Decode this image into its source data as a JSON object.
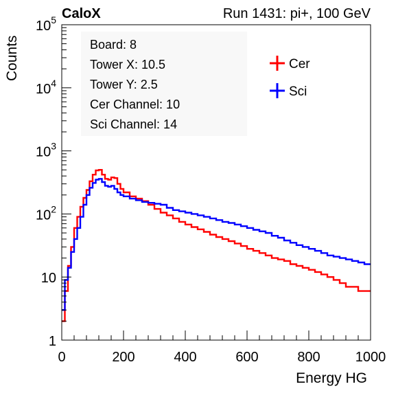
{
  "chart_data": {
    "type": "line",
    "title_left": "CaloX",
    "title_right": "Run 1431: pi+, 100 GeV",
    "xlabel": "Energy HG",
    "ylabel": "Counts",
    "xlim": [
      0,
      1000
    ],
    "ylim": [
      1,
      100000
    ],
    "y_scale": "log",
    "grid": false,
    "legend_position": "top-right",
    "x_ticks": [
      {
        "value": 0,
        "label": "0"
      },
      {
        "value": 200,
        "label": "200"
      },
      {
        "value": 400,
        "label": "400"
      },
      {
        "value": 600,
        "label": "600"
      },
      {
        "value": 800,
        "label": "800"
      },
      {
        "value": 1000,
        "label": "1000"
      }
    ],
    "y_ticks": [
      {
        "value": 1,
        "base": "1",
        "exp": ""
      },
      {
        "value": 10,
        "base": "10",
        "exp": ""
      },
      {
        "value": 100,
        "base": "10",
        "exp": "2"
      },
      {
        "value": 1000,
        "base": "10",
        "exp": "3"
      },
      {
        "value": 10000,
        "base": "10",
        "exp": "4"
      },
      {
        "value": 100000,
        "base": "10",
        "exp": "5"
      }
    ],
    "info_lines": [
      "Board: 8",
      "Tower X: 10.5",
      "Tower Y: 2.5",
      "Cer Channel: 10",
      "Sci Channel: 14"
    ],
    "series": [
      {
        "name": "Cer",
        "color": "#ff0000",
        "x": [
          0,
          10,
          20,
          30,
          40,
          50,
          60,
          70,
          80,
          90,
          100,
          110,
          120,
          130,
          140,
          150,
          160,
          170,
          180,
          190,
          200,
          220,
          240,
          260,
          280,
          300,
          320,
          340,
          360,
          380,
          400,
          420,
          440,
          460,
          480,
          500,
          520,
          540,
          560,
          580,
          600,
          620,
          640,
          660,
          680,
          700,
          720,
          740,
          760,
          780,
          800,
          820,
          840,
          860,
          880,
          900,
          920,
          940,
          960,
          980,
          1000
        ],
        "y": [
          2,
          6,
          15,
          30,
          60,
          90,
          130,
          180,
          240,
          330,
          420,
          490,
          500,
          420,
          360,
          350,
          380,
          370,
          300,
          250,
          220,
          190,
          175,
          160,
          140,
          120,
          105,
          95,
          85,
          75,
          68,
          62,
          57,
          52,
          47,
          43,
          40,
          37,
          34,
          31,
          28,
          26,
          24,
          22,
          20,
          19,
          18,
          16,
          15,
          14,
          13,
          12,
          11,
          10,
          9,
          8,
          7,
          7,
          6,
          6,
          6
        ]
      },
      {
        "name": "Sci",
        "color": "#0000ff",
        "x": [
          0,
          10,
          20,
          30,
          40,
          50,
          60,
          70,
          80,
          90,
          100,
          110,
          120,
          130,
          140,
          150,
          160,
          170,
          180,
          190,
          200,
          220,
          240,
          260,
          280,
          300,
          320,
          340,
          360,
          380,
          400,
          420,
          440,
          460,
          480,
          500,
          520,
          540,
          560,
          580,
          600,
          620,
          640,
          660,
          680,
          700,
          720,
          740,
          760,
          780,
          800,
          820,
          840,
          860,
          880,
          900,
          920,
          940,
          960,
          980,
          1000
        ],
        "y": [
          3,
          9,
          14,
          25,
          40,
          60,
          90,
          140,
          200,
          260,
          310,
          350,
          360,
          320,
          280,
          270,
          280,
          250,
          220,
          200,
          190,
          175,
          165,
          155,
          150,
          145,
          140,
          125,
          115,
          110,
          105,
          100,
          95,
          90,
          85,
          80,
          75,
          72,
          68,
          64,
          60,
          56,
          53,
          50,
          45,
          42,
          38,
          35,
          32,
          30,
          28,
          26,
          24,
          22,
          21,
          20,
          19,
          18,
          17,
          16,
          15
        ]
      }
    ]
  }
}
